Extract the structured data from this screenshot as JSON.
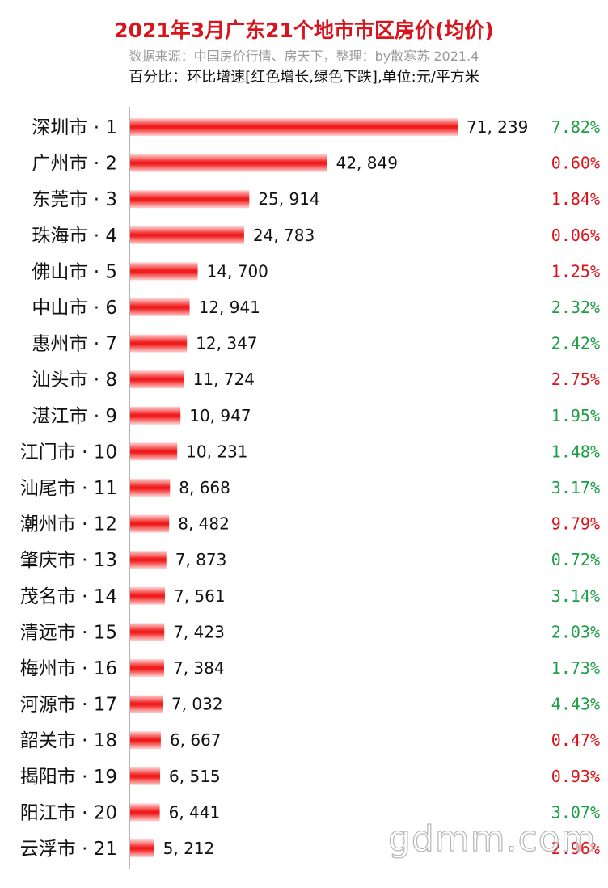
{
  "header": {
    "title": "2021年3月广东21个地市市区房价(均价)",
    "subtitle": "数据来源：中国房价行情、房天下，整理：by散寒苏 2021.4",
    "note": "百分比：环比增速[红色增长,绿色下跌],单位:元/平方米"
  },
  "colors": {
    "bar": "#f01c1c",
    "up": "#d9141c",
    "down": "#1e9e46",
    "axis": "#9a9a9a"
  },
  "chart_data": {
    "type": "bar",
    "orientation": "horizontal",
    "categories": [
      "深圳市 · 1",
      "广州市 · 2",
      "东莞市 · 3",
      "珠海市 · 4",
      "佛山市 · 5",
      "中山市 · 6",
      "惠州市 · 7",
      "汕头市 · 8",
      "湛江市 · 9",
      "江门市 · 10",
      "汕尾市 · 11",
      "潮州市 · 12",
      "肇庆市 · 13",
      "茂名市 · 14",
      "清远市 · 15",
      "梅州市 · 16",
      "河源市 · 17",
      "韶关市 · 18",
      "揭阳市 · 19",
      "阳江市 · 20",
      "云浮市 · 21"
    ],
    "values": [
      71239,
      42849,
      25914,
      24783,
      14700,
      12941,
      12347,
      11724,
      10947,
      10231,
      8668,
      8482,
      7873,
      7561,
      7423,
      7384,
      7032,
      6667,
      6515,
      6441,
      5212
    ],
    "value_labels": [
      "71, 239",
      "42, 849",
      "25, 914",
      "24, 783",
      "14, 700",
      "12, 941",
      "12, 347",
      "11, 724",
      "10, 947",
      "10, 231",
      "8, 668",
      "8, 482",
      "7, 873",
      "7, 561",
      "7, 423",
      "7, 384",
      "7, 032",
      "6, 667",
      "6, 515",
      "6, 441",
      "5, 212"
    ],
    "mom_growth": [
      "7.82%",
      "0.60%",
      "1.84%",
      "0.06%",
      "1.25%",
      "2.32%",
      "2.42%",
      "2.75%",
      "1.95%",
      "1.48%",
      "3.17%",
      "9.79%",
      "0.72%",
      "3.14%",
      "2.03%",
      "1.73%",
      "4.43%",
      "0.47%",
      "0.93%",
      "3.07%",
      "2.96%"
    ],
    "mom_direction": [
      "down",
      "up",
      "up",
      "up",
      "up",
      "down",
      "down",
      "up",
      "down",
      "down",
      "down",
      "up",
      "down",
      "down",
      "down",
      "down",
      "down",
      "up",
      "up",
      "down",
      "up"
    ],
    "xlim": [
      0,
      71239
    ],
    "grid": false,
    "legend": "none"
  },
  "watermark": "gdmm.com"
}
